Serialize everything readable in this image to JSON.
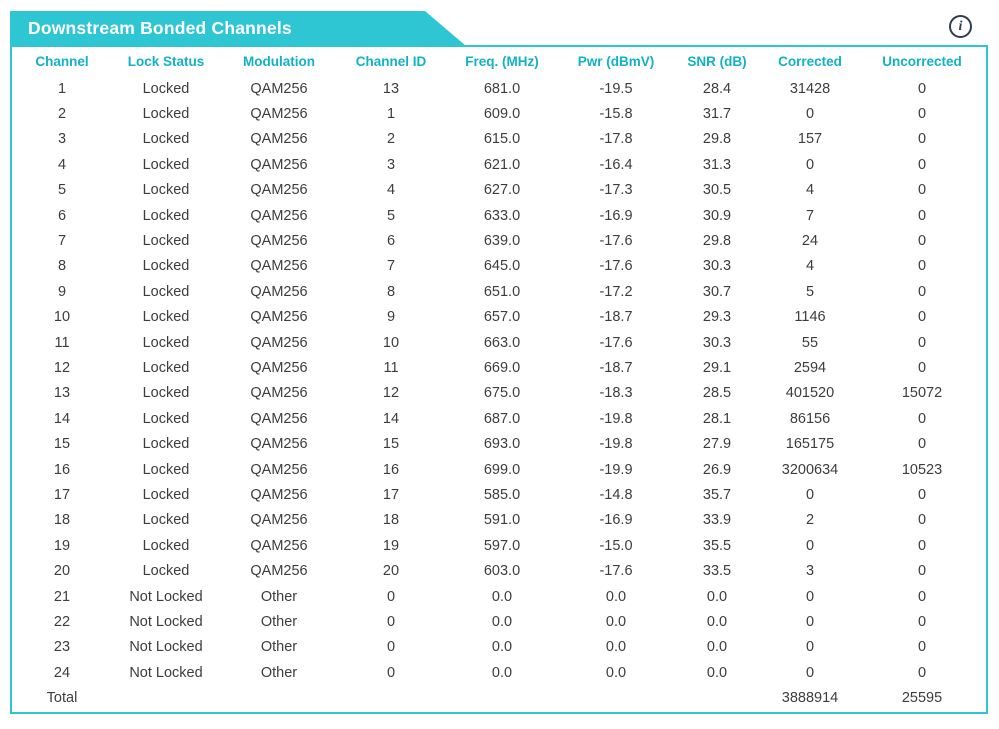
{
  "header": {
    "title": "Downstream Bonded Channels",
    "info_icon_glyph": "i"
  },
  "colors": {
    "banner_teal": "#2ec6d2",
    "border_teal": "#2ec6d2",
    "column_header_text": "#12b2c6",
    "body_text": "#3d3d3d",
    "info_icon": "#2e3d52",
    "banner_title_text": "#ffffff"
  },
  "table": {
    "columns": [
      "Channel",
      "Lock Status",
      "Modulation",
      "Channel ID",
      "Freq. (MHz)",
      "Pwr (dBmV)",
      "SNR (dB)",
      "Corrected",
      "Uncorrected"
    ],
    "rows": [
      [
        "1",
        "Locked",
        "QAM256",
        "13",
        "681.0",
        "-19.5",
        "28.4",
        "31428",
        "0"
      ],
      [
        "2",
        "Locked",
        "QAM256",
        "1",
        "609.0",
        "-15.8",
        "31.7",
        "0",
        "0"
      ],
      [
        "3",
        "Locked",
        "QAM256",
        "2",
        "615.0",
        "-17.8",
        "29.8",
        "157",
        "0"
      ],
      [
        "4",
        "Locked",
        "QAM256",
        "3",
        "621.0",
        "-16.4",
        "31.3",
        "0",
        "0"
      ],
      [
        "5",
        "Locked",
        "QAM256",
        "4",
        "627.0",
        "-17.3",
        "30.5",
        "4",
        "0"
      ],
      [
        "6",
        "Locked",
        "QAM256",
        "5",
        "633.0",
        "-16.9",
        "30.9",
        "7",
        "0"
      ],
      [
        "7",
        "Locked",
        "QAM256",
        "6",
        "639.0",
        "-17.6",
        "29.8",
        "24",
        "0"
      ],
      [
        "8",
        "Locked",
        "QAM256",
        "7",
        "645.0",
        "-17.6",
        "30.3",
        "4",
        "0"
      ],
      [
        "9",
        "Locked",
        "QAM256",
        "8",
        "651.0",
        "-17.2",
        "30.7",
        "5",
        "0"
      ],
      [
        "10",
        "Locked",
        "QAM256",
        "9",
        "657.0",
        "-18.7",
        "29.3",
        "1146",
        "0"
      ],
      [
        "11",
        "Locked",
        "QAM256",
        "10",
        "663.0",
        "-17.6",
        "30.3",
        "55",
        "0"
      ],
      [
        "12",
        "Locked",
        "QAM256",
        "11",
        "669.0",
        "-18.7",
        "29.1",
        "2594",
        "0"
      ],
      [
        "13",
        "Locked",
        "QAM256",
        "12",
        "675.0",
        "-18.3",
        "28.5",
        "401520",
        "15072"
      ],
      [
        "14",
        "Locked",
        "QAM256",
        "14",
        "687.0",
        "-19.8",
        "28.1",
        "86156",
        "0"
      ],
      [
        "15",
        "Locked",
        "QAM256",
        "15",
        "693.0",
        "-19.8",
        "27.9",
        "165175",
        "0"
      ],
      [
        "16",
        "Locked",
        "QAM256",
        "16",
        "699.0",
        "-19.9",
        "26.9",
        "3200634",
        "10523"
      ],
      [
        "17",
        "Locked",
        "QAM256",
        "17",
        "585.0",
        "-14.8",
        "35.7",
        "0",
        "0"
      ],
      [
        "18",
        "Locked",
        "QAM256",
        "18",
        "591.0",
        "-16.9",
        "33.9",
        "2",
        "0"
      ],
      [
        "19",
        "Locked",
        "QAM256",
        "19",
        "597.0",
        "-15.0",
        "35.5",
        "0",
        "0"
      ],
      [
        "20",
        "Locked",
        "QAM256",
        "20",
        "603.0",
        "-17.6",
        "33.5",
        "3",
        "0"
      ],
      [
        "21",
        "Not Locked",
        "Other",
        "0",
        "0.0",
        "0.0",
        "0.0",
        "0",
        "0"
      ],
      [
        "22",
        "Not Locked",
        "Other",
        "0",
        "0.0",
        "0.0",
        "0.0",
        "0",
        "0"
      ],
      [
        "23",
        "Not Locked",
        "Other",
        "0",
        "0.0",
        "0.0",
        "0.0",
        "0",
        "0"
      ],
      [
        "24",
        "Not Locked",
        "Other",
        "0",
        "0.0",
        "0.0",
        "0.0",
        "0",
        "0"
      ]
    ],
    "total_row": [
      "Total",
      "",
      "",
      "",
      "",
      "",
      "",
      "3888914",
      "25595"
    ]
  }
}
